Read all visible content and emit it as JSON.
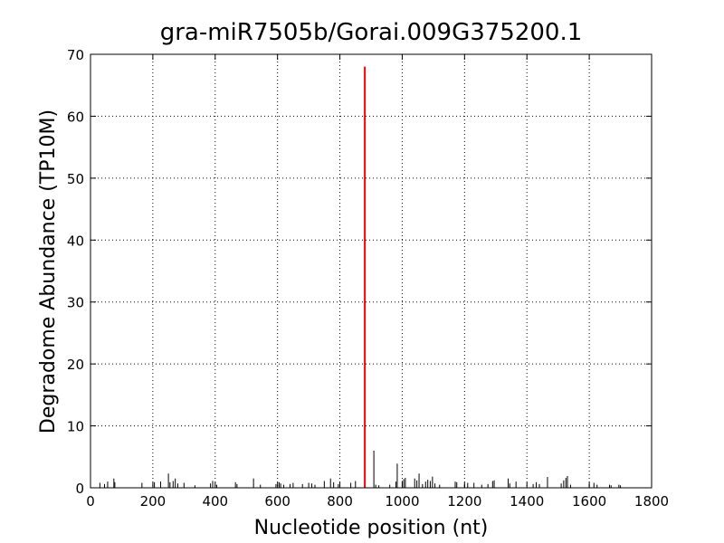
{
  "chart_data": {
    "type": "stem",
    "title": "gra-miR7505b/Gorai.009G375200.1",
    "x_label": "Nucleotide position (nt)",
    "y_label": "Degradome Abundance (TP10M)",
    "xlim": [
      0,
      1800
    ],
    "xticks": [
      0,
      200,
      400,
      600,
      800,
      1000,
      1200,
      1400,
      1600,
      1800
    ],
    "ylim": [
      0,
      70
    ],
    "yticks": [
      0,
      10,
      20,
      30,
      40,
      50,
      60,
      70
    ],
    "grid": true,
    "series": [
      {
        "color": "#000000",
        "x": [
          30,
          45,
          55,
          75,
          78,
          165,
          205,
          225,
          250,
          255,
          265,
          272,
          280,
          300,
          335,
          385,
          392,
          405,
          465,
          470,
          523,
          545,
          595,
          605,
          610,
          620,
          640,
          650,
          680,
          700,
          710,
          720,
          750,
          770,
          780,
          795,
          835,
          850,
          909,
          915,
          925,
          960,
          980,
          984,
          1000,
          1005,
          1010,
          1040,
          1047,
          1054,
          1065,
          1075,
          1082,
          1090,
          1097,
          1105,
          1120,
          1170,
          1175,
          1200,
          1210,
          1230,
          1255,
          1275,
          1290,
          1295,
          1340,
          1345,
          1365,
          1420,
          1430,
          1440,
          1466,
          1510,
          1518,
          1525,
          1530,
          1540,
          1600,
          1615,
          1625,
          1665,
          1670,
          1695,
          1700
        ],
        "values": [
          0.8,
          0.6,
          1.0,
          1.5,
          0.9,
          0.8,
          0.9,
          1.0,
          2.3,
          0.9,
          1.1,
          1.5,
          0.7,
          0.8,
          0.4,
          0.7,
          1.1,
          0.5,
          0.9,
          0.6,
          1.5,
          0.5,
          0.6,
          0.9,
          0.7,
          0.5,
          0.6,
          0.8,
          0.6,
          0.8,
          0.7,
          0.5,
          1.1,
          1.5,
          0.9,
          0.6,
          0.8,
          1.1,
          6.0,
          0.5,
          0.4,
          0.5,
          1.0,
          3.9,
          1.1,
          1.4,
          1.6,
          1.5,
          1.2,
          2.3,
          0.6,
          1.0,
          1.3,
          1.1,
          1.8,
          0.7,
          0.5,
          1.0,
          0.9,
          0.6,
          0.8,
          0.8,
          0.5,
          0.6,
          1.1,
          1.2,
          1.5,
          0.7,
          1.0,
          0.6,
          0.9,
          0.6,
          1.75,
          0.7,
          1.2,
          1.6,
          1.9,
          0.5,
          0.6,
          0.8,
          0.5,
          0.5,
          0.4,
          0.5,
          0.4
        ]
      },
      {
        "color": "#ff0000",
        "x": [
          880
        ],
        "values": [
          68
        ]
      }
    ]
  }
}
